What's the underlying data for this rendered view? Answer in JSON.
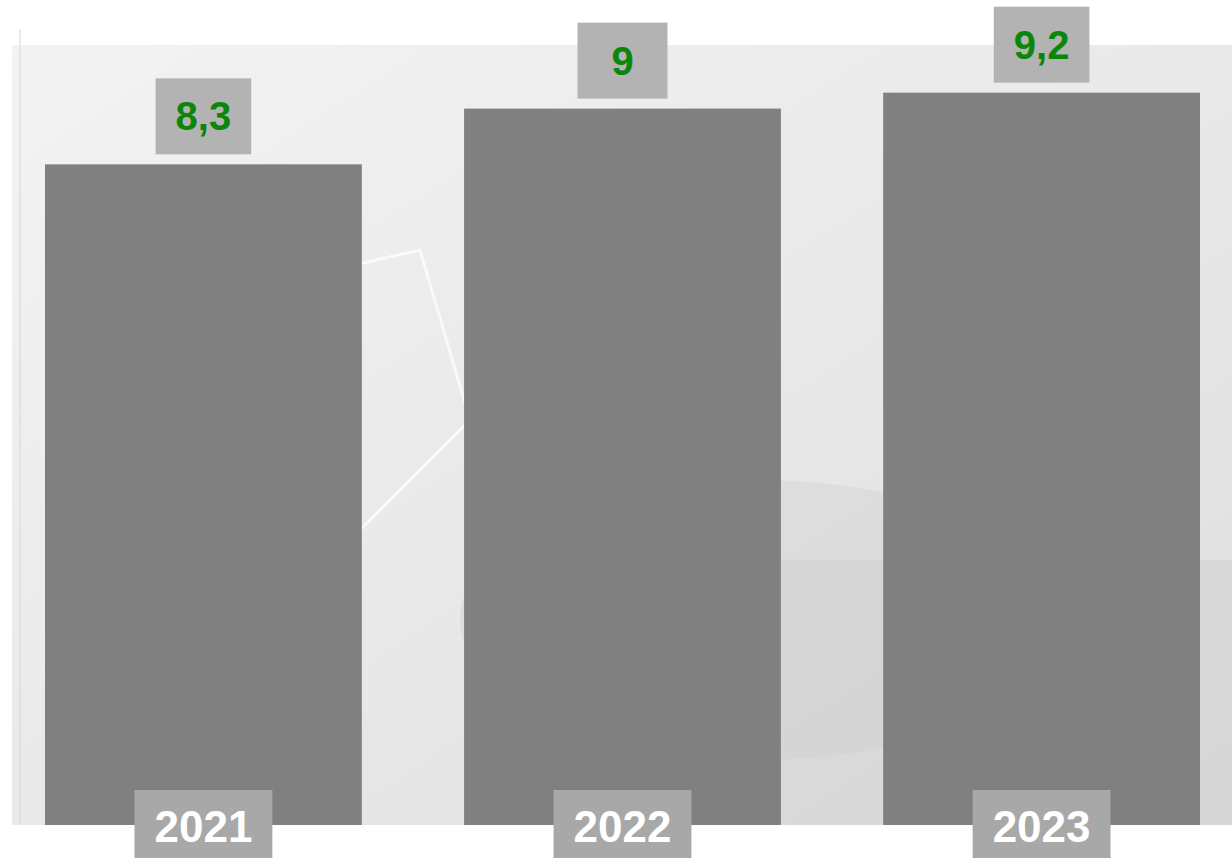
{
  "chart_data": {
    "type": "bar",
    "categories": [
      "2021",
      "2022",
      "2023"
    ],
    "values": [
      8.3,
      9,
      9.2
    ],
    "value_labels": [
      "8,3",
      "9",
      "9,2"
    ],
    "color": "#808080",
    "ylim": [
      0,
      10
    ],
    "data_labels": true,
    "tick_labels": "x",
    "grid": false
  }
}
